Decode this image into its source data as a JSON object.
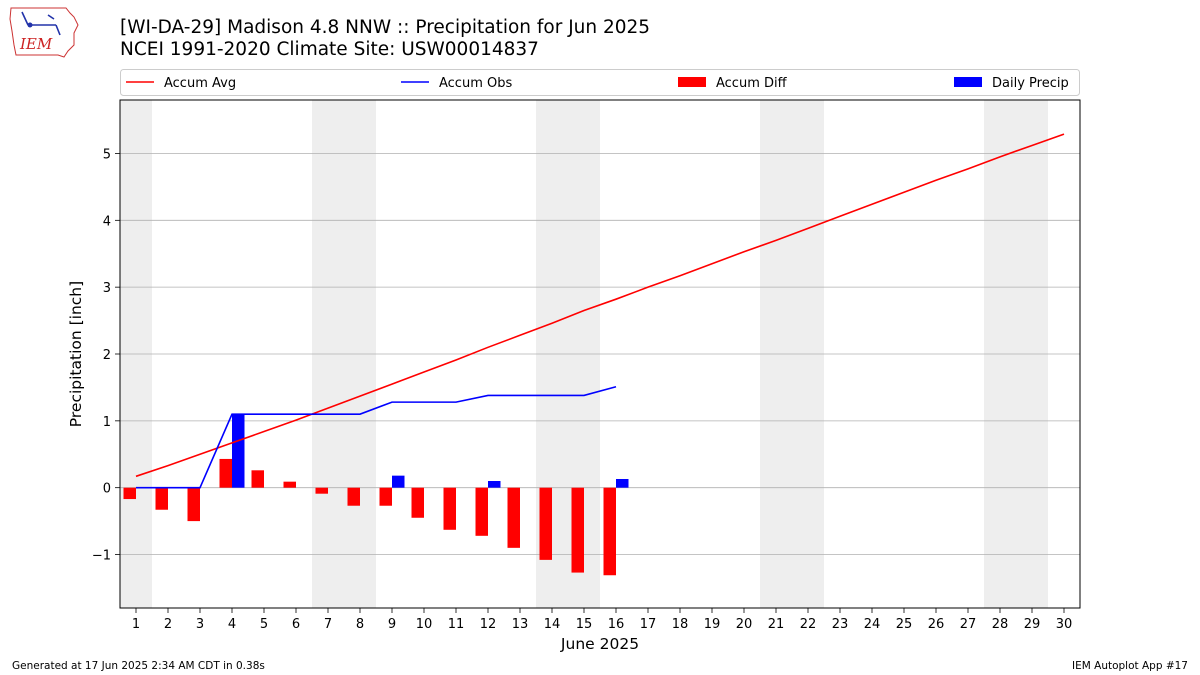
{
  "header": {
    "title_line1": "[WI-DA-29] Madison 4.8 NNW :: Precipitation for Jun 2025",
    "title_line2": "NCEI 1991-2020 Climate Site: USW00014837"
  },
  "logo": {
    "text": "IEM",
    "icon": "iem-iowa-logo"
  },
  "footer": {
    "generated": "Generated at 17 Jun 2025 2:34 AM CDT in 0.38s",
    "app": "IEM Autoplot App #17"
  },
  "colors": {
    "avg": "#ff0000",
    "obs": "#0000ff",
    "diff": "#ff0000",
    "daily": "#0000ff",
    "weekend": "#eeeeee",
    "grid": "#b0b0b0"
  },
  "chart_data": {
    "type": "bar",
    "xlabel": "June 2025",
    "ylabel": "Precipitation [inch]",
    "xlim": [
      0.5,
      30.5
    ],
    "ylim": [
      -1.8,
      5.8
    ],
    "x_ticks": [
      1,
      2,
      3,
      4,
      5,
      6,
      7,
      8,
      9,
      10,
      11,
      12,
      13,
      14,
      15,
      16,
      17,
      18,
      19,
      20,
      21,
      22,
      23,
      24,
      25,
      26,
      27,
      28,
      29,
      30
    ],
    "y_ticks": [
      -1,
      0,
      1,
      2,
      3,
      4,
      5
    ],
    "y_tick_labels": [
      "−1",
      "0",
      "1",
      "2",
      "3",
      "4",
      "5"
    ],
    "grid": "horizontal",
    "legend_position": "top",
    "shaded_days": [
      [
        0.5,
        1.5
      ],
      [
        6.5,
        8.5
      ],
      [
        13.5,
        15.5
      ],
      [
        20.5,
        22.5
      ],
      [
        27.5,
        29.5
      ]
    ],
    "series": [
      {
        "name": "Accum Avg",
        "kind": "line",
        "x": [
          1,
          2,
          3,
          4,
          5,
          6,
          7,
          8,
          9,
          10,
          11,
          12,
          13,
          14,
          15,
          16,
          17,
          18,
          19,
          20,
          21,
          22,
          23,
          24,
          25,
          26,
          27,
          28,
          29,
          30
        ],
        "values": [
          0.17,
          0.33,
          0.5,
          0.67,
          0.84,
          1.01,
          1.19,
          1.37,
          1.55,
          1.73,
          1.91,
          2.1,
          2.28,
          2.46,
          2.65,
          2.82,
          3.0,
          3.17,
          3.35,
          3.53,
          3.7,
          3.88,
          4.06,
          4.24,
          4.42,
          4.6,
          4.77,
          4.95,
          5.12,
          5.29
        ]
      },
      {
        "name": "Accum Obs",
        "kind": "line",
        "x": [
          1,
          2,
          3,
          4,
          5,
          6,
          7,
          8,
          9,
          10,
          11,
          12,
          13,
          14,
          15,
          16
        ],
        "values": [
          0,
          0,
          0,
          1.1,
          1.1,
          1.1,
          1.1,
          1.1,
          1.28,
          1.28,
          1.28,
          1.38,
          1.38,
          1.38,
          1.38,
          1.51
        ]
      },
      {
        "name": "Accum Diff",
        "kind": "bar",
        "x": [
          1,
          2,
          3,
          4,
          5,
          6,
          7,
          8,
          9,
          10,
          11,
          12,
          13,
          14,
          15,
          16
        ],
        "values": [
          -0.17,
          -0.33,
          -0.5,
          0.43,
          0.26,
          0.09,
          -0.09,
          -0.27,
          -0.27,
          -0.45,
          -0.63,
          -0.72,
          -0.9,
          -1.08,
          -1.27,
          -1.31
        ]
      },
      {
        "name": "Daily Precip",
        "kind": "bar",
        "x": [
          4,
          9,
          12,
          16
        ],
        "values": [
          1.1,
          0.18,
          0.1,
          0.13
        ]
      }
    ]
  }
}
